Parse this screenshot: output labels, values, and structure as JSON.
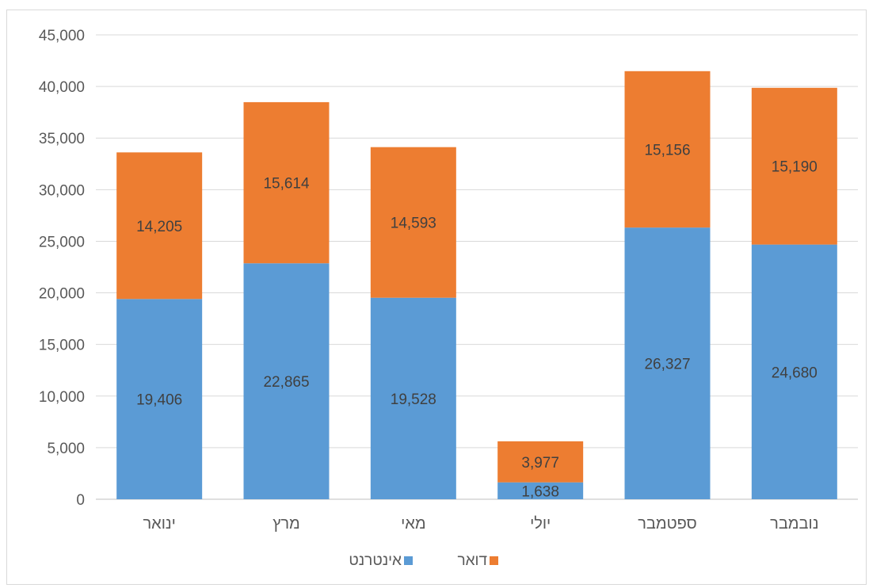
{
  "chart_data": {
    "type": "bar",
    "stacked": true,
    "categories": [
      "ינואר",
      "מרץ",
      "מאי",
      "יולי",
      "ספטמבר",
      "נובמבר"
    ],
    "series": [
      {
        "name": "אינטרנט",
        "color": "#5b9bd5",
        "values": [
          19406,
          22865,
          19528,
          1638,
          26327,
          24680
        ]
      },
      {
        "name": "דואר",
        "color": "#ed7d31",
        "values": [
          14205,
          15614,
          14593,
          3977,
          15156,
          15190
        ]
      }
    ],
    "data_labels": {
      "אינטרנט": [
        "19,406",
        "22,865",
        "19,528",
        "1,638",
        "26,327",
        "24,680"
      ],
      "דואר": [
        "14,205",
        "15,614",
        "14,593",
        "3,977",
        "15,156",
        "15,190"
      ]
    },
    "yticks": [
      "0",
      "5,000",
      "10,000",
      "15,000",
      "20,000",
      "25,000",
      "30,000",
      "35,000",
      "40,000",
      "45,000"
    ],
    "ylim": [
      0,
      45000
    ],
    "grid": true,
    "legend_position": "bottom",
    "title": "",
    "xlabel": "",
    "ylabel": ""
  }
}
